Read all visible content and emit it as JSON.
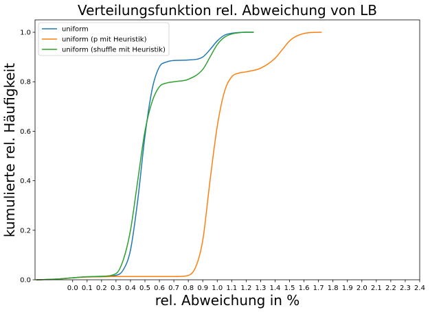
{
  "chart_data": {
    "type": "line",
    "title": "Verteilungsfunktion rel. Abweichung von LB",
    "xlabel": "rel. Abweichung in %",
    "ylabel": "kumulierte rel. Häufigkeit",
    "xlim": [
      -0.26,
      2.4
    ],
    "ylim": [
      0,
      1.05
    ],
    "xticks": [
      0.0,
      0.1,
      0.2,
      0.3,
      0.4,
      0.5,
      0.6,
      0.7,
      0.8,
      0.9,
      1.0,
      1.1,
      1.2,
      1.3,
      1.4,
      1.5,
      1.6,
      1.7,
      1.8,
      1.9,
      2.0,
      2.1,
      2.2,
      2.3,
      2.4
    ],
    "xtick_labels": [
      "0.0",
      "0.1",
      "0.2",
      "0.3",
      "0.4",
      "0.5",
      "0.6",
      "0.7",
      "0.8",
      "0.9",
      "1.0",
      "1.1",
      "1.2",
      "1.3",
      "1.4",
      "1.5",
      "1.6",
      "1.7",
      "1.8",
      "1.9",
      "2.0",
      "2.1",
      "2.2",
      "2.3",
      "2.4"
    ],
    "yticks": [
      0.0,
      0.2,
      0.4,
      0.6,
      0.8,
      1.0
    ],
    "ytick_labels": [
      "0.0",
      "0.2",
      "0.4",
      "0.6",
      "0.8",
      "1.0"
    ],
    "grid": false,
    "legend_position": "top-left",
    "series": [
      {
        "name": "uniform",
        "color": "#1f77b4",
        "x": [
          -0.25,
          -0.1,
          0.0,
          0.1,
          0.2,
          0.3,
          0.35,
          0.4,
          0.45,
          0.5,
          0.55,
          0.6,
          0.65,
          0.7,
          0.8,
          0.9,
          0.95,
          1.0,
          1.05,
          1.1,
          1.15,
          1.2,
          1.25
        ],
        "y": [
          0.0,
          0.003,
          0.008,
          0.012,
          0.014,
          0.018,
          0.04,
          0.12,
          0.32,
          0.58,
          0.77,
          0.86,
          0.88,
          0.886,
          0.888,
          0.9,
          0.93,
          0.965,
          0.988,
          0.996,
          0.999,
          1.0,
          1.0
        ]
      },
      {
        "name": "uniform (p mit Heuristik)",
        "color": "#ff7f0e",
        "x": [
          -0.25,
          -0.1,
          0.0,
          0.1,
          0.2,
          0.3,
          0.5,
          0.7,
          0.78,
          0.85,
          0.9,
          0.95,
          1.0,
          1.05,
          1.1,
          1.15,
          1.2,
          1.3,
          1.4,
          1.45,
          1.5,
          1.55,
          1.6,
          1.65,
          1.72
        ],
        "y": [
          0.0,
          0.003,
          0.008,
          0.011,
          0.012,
          0.013,
          0.013,
          0.013,
          0.015,
          0.05,
          0.16,
          0.4,
          0.62,
          0.76,
          0.82,
          0.835,
          0.84,
          0.855,
          0.895,
          0.93,
          0.965,
          0.985,
          0.995,
          0.999,
          1.0
        ]
      },
      {
        "name": "uniform (shuffle mit Heuristik)",
        "color": "#2ca02c",
        "x": [
          -0.25,
          -0.1,
          0.0,
          0.1,
          0.2,
          0.3,
          0.35,
          0.4,
          0.45,
          0.5,
          0.55,
          0.6,
          0.65,
          0.7,
          0.8,
          0.9,
          0.95,
          1.0,
          1.05,
          1.1,
          1.15,
          1.2,
          1.25
        ],
        "y": [
          0.0,
          0.003,
          0.008,
          0.012,
          0.014,
          0.025,
          0.08,
          0.2,
          0.4,
          0.6,
          0.72,
          0.78,
          0.795,
          0.8,
          0.81,
          0.85,
          0.9,
          0.95,
          0.98,
          0.993,
          0.998,
          1.0,
          1.0
        ]
      }
    ]
  }
}
